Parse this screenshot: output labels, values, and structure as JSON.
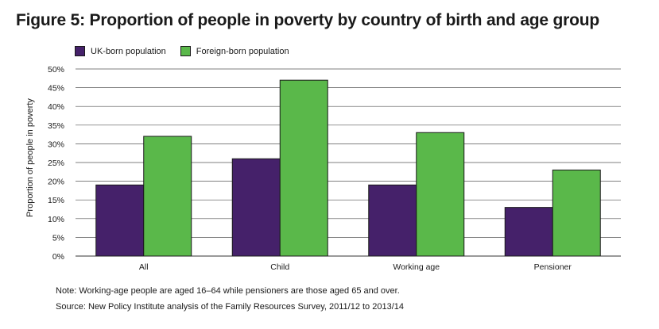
{
  "chart_data": {
    "type": "bar",
    "title": "Figure 5: Proportion of people in poverty by country of birth and age group",
    "categories": [
      "All",
      "Child",
      "Working age",
      "Pensioner"
    ],
    "series": [
      {
        "name": "UK-born population",
        "values": [
          19,
          26,
          19,
          13
        ],
        "color": "#45216a"
      },
      {
        "name": "Foreign-born population",
        "values": [
          32,
          47,
          33,
          23
        ],
        "color": "#5ab84a"
      }
    ],
    "xlabel": "",
    "ylabel": "Proportion of people in poverty",
    "ylim": [
      0,
      50
    ],
    "yticks": [
      "0%",
      "5%",
      "10%",
      "15%",
      "20%",
      "25%",
      "30%",
      "35%",
      "40%",
      "45%",
      "50%"
    ],
    "grid": true,
    "legend": "top-left"
  },
  "notes": {
    "note": "Note: Working-age people are aged 16–64 while pensioners are those aged 65 and over.",
    "source": "Source: New Policy Institute analysis of the Family Resources Survey, 2011/12 to 2013/14"
  }
}
